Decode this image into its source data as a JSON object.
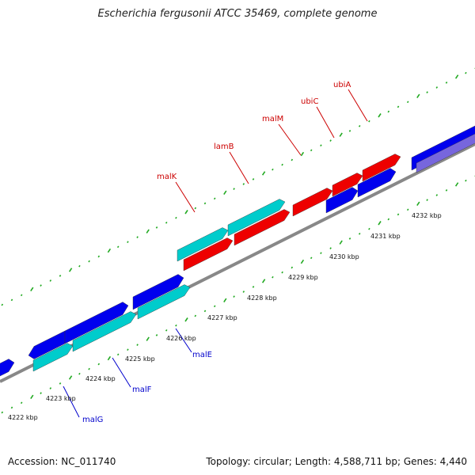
{
  "title": "Escherichia fergusonii ATCC 35469, complete genome",
  "footer": {
    "accession": "Accession: NC_011740",
    "summary": "Topology: circular; Length: 4,588,711 bp; Genes: 4,440"
  },
  "colors": {
    "forward_gene": "#0000ee",
    "forward_gene_alt": "#00cccc",
    "reverse_gene": "#ee0000",
    "reverse_gene_alt": "#7766dd",
    "backbone": "#888888",
    "tick_mark": "#22aa22",
    "label_forward": "#0000cc",
    "label_reverse": "#cc0000"
  },
  "axis": {
    "ticks": [
      {
        "label": "4222 kbp"
      },
      {
        "label": "4223 kbp"
      },
      {
        "label": "4224 kbp"
      },
      {
        "label": "4225 kbp"
      },
      {
        "label": "4226 kbp"
      },
      {
        "label": "4227 kbp"
      },
      {
        "label": "4228 kbp"
      },
      {
        "label": "4229 kbp"
      },
      {
        "label": "4230 kbp"
      },
      {
        "label": "4231 kbp"
      },
      {
        "label": "4232 kbp"
      }
    ]
  },
  "gene_labels": [
    {
      "name": "ubiA",
      "strand": "reverse"
    },
    {
      "name": "ubiC",
      "strand": "reverse"
    },
    {
      "name": "malM",
      "strand": "reverse"
    },
    {
      "name": "lamB",
      "strand": "reverse"
    },
    {
      "name": "malK",
      "strand": "reverse"
    },
    {
      "name": "malE",
      "strand": "forward"
    },
    {
      "name": "malF",
      "strand": "forward"
    },
    {
      "name": "malG",
      "strand": "forward"
    }
  ]
}
